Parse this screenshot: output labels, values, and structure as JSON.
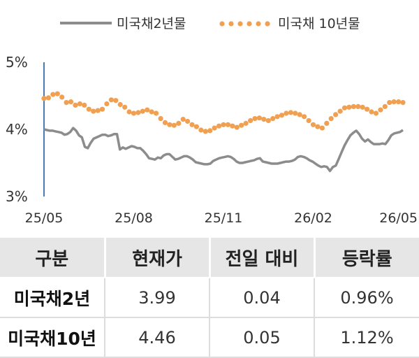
{
  "chart_data": {
    "type": "line",
    "legend": {
      "placement": "top"
    },
    "grid": false,
    "ylim": [
      3,
      5
    ],
    "ytick_labels": [
      "5%",
      "4%",
      "3%"
    ],
    "xtick_labels": [
      "25/05",
      "25/08",
      "25/11",
      "26/02",
      "26/05"
    ],
    "series": [
      {
        "name": "미국채2년물",
        "color": "#8c8c8c",
        "style": "solid",
        "values": [
          4.0,
          3.99,
          3.98,
          3.98,
          3.97,
          3.96,
          3.95,
          3.92,
          3.93,
          3.96,
          4.02,
          3.98,
          3.91,
          3.88,
          3.74,
          3.72,
          3.8,
          3.86,
          3.88,
          3.9,
          3.92,
          3.92,
          3.9,
          3.91,
          3.93,
          3.93,
          3.7,
          3.73,
          3.71,
          3.73,
          3.75,
          3.74,
          3.72,
          3.72,
          3.68,
          3.63,
          3.57,
          3.56,
          3.55,
          3.58,
          3.57,
          3.61,
          3.63,
          3.63,
          3.59,
          3.55,
          3.56,
          3.58,
          3.6,
          3.6,
          3.58,
          3.55,
          3.51,
          3.5,
          3.49,
          3.48,
          3.48,
          3.49,
          3.53,
          3.55,
          3.57,
          3.58,
          3.59,
          3.6,
          3.59,
          3.56,
          3.52,
          3.5,
          3.5,
          3.51,
          3.52,
          3.53,
          3.54,
          3.56,
          3.57,
          3.52,
          3.51,
          3.5,
          3.49,
          3.49,
          3.49,
          3.5,
          3.51,
          3.52,
          3.52,
          3.53,
          3.55,
          3.59,
          3.6,
          3.59,
          3.57,
          3.54,
          3.52,
          3.49,
          3.46,
          3.44,
          3.45,
          3.44,
          3.38,
          3.44,
          3.46,
          3.56,
          3.66,
          3.76,
          3.84,
          3.91,
          3.95,
          3.98,
          3.93,
          3.86,
          3.82,
          3.85,
          3.81,
          3.78,
          3.78,
          3.78,
          3.79,
          3.78,
          3.84,
          3.91,
          3.94,
          3.95,
          3.96,
          3.99
        ]
      },
      {
        "name": "미국채 10년물",
        "color": "#f0a050",
        "style": "dotted",
        "values": [
          4.46,
          4.47,
          4.52,
          4.53,
          4.48,
          4.4,
          4.41,
          4.36,
          4.38,
          4.36,
          4.3,
          4.27,
          4.28,
          4.3,
          4.38,
          4.44,
          4.43,
          4.37,
          4.33,
          4.26,
          4.24,
          4.25,
          4.27,
          4.29,
          4.26,
          4.24,
          4.16,
          4.1,
          4.07,
          4.06,
          4.09,
          4.15,
          4.12,
          4.07,
          4.04,
          3.99,
          3.97,
          3.98,
          4.02,
          4.05,
          4.07,
          4.07,
          4.05,
          4.03,
          4.06,
          4.09,
          4.13,
          4.16,
          4.17,
          4.15,
          4.13,
          4.16,
          4.19,
          4.21,
          4.24,
          4.25,
          4.24,
          4.22,
          4.19,
          4.13,
          4.07,
          4.04,
          4.02,
          4.09,
          4.16,
          4.22,
          4.27,
          4.32,
          4.33,
          4.34,
          4.34,
          4.33,
          4.3,
          4.26,
          4.24,
          4.29,
          4.34,
          4.4,
          4.41,
          4.41,
          4.4
        ]
      }
    ]
  },
  "table": {
    "headers": [
      "구분",
      "현재가",
      "전일 대비",
      "등락률"
    ],
    "rows": [
      [
        "미국채2년",
        "3.99",
        "0.04",
        "0.96%"
      ],
      [
        "미국채10년",
        "4.46",
        "0.05",
        "1.12%"
      ]
    ]
  }
}
